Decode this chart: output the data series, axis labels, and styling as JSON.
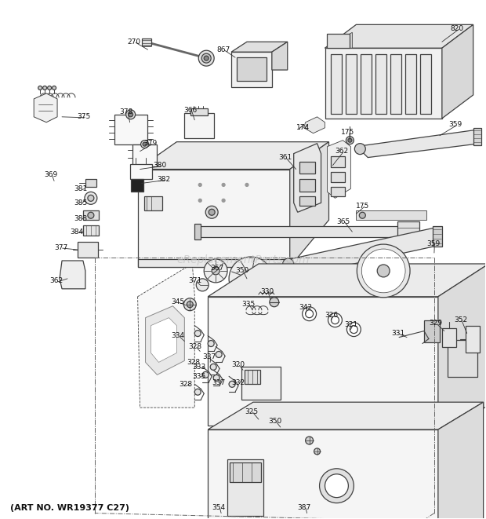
{
  "subtitle": "(ART NO. WR19377 C27)",
  "watermark": "eReplacementParts.com",
  "bg_color": "#ffffff",
  "line_color": "#404040",
  "fig_width": 6.2,
  "fig_height": 6.61,
  "dpi": 100
}
